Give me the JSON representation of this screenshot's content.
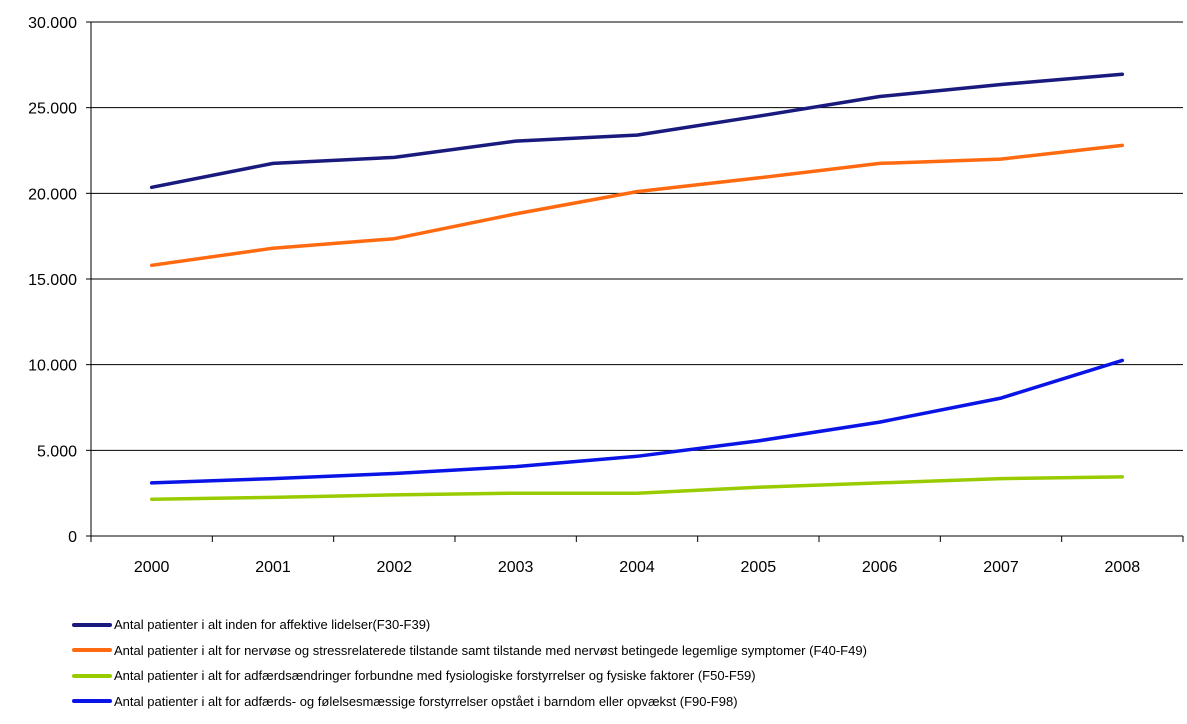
{
  "chart_data": {
    "type": "line",
    "categories": [
      "2000",
      "2001",
      "2002",
      "2003",
      "2004",
      "2005",
      "2006",
      "2007",
      "2008"
    ],
    "y_ticks": [
      "0",
      "5.000",
      "10.000",
      "15.000",
      "20.000",
      "25.000",
      "30.000"
    ],
    "ylim": [
      0,
      30000
    ],
    "grid": true,
    "legend_position": "bottom",
    "series": [
      {
        "name": "Antal patienter i alt inden for affektive lidelser(F30-F39)",
        "color": "#1a1a7e",
        "values": [
          20350,
          21750,
          22100,
          23050,
          23400,
          24500,
          25650,
          26350,
          26950
        ]
      },
      {
        "name": "Antal patienter i alt for nervøse og stressrelaterede tilstande samt tilstande med nervøst betingede legemlige symptomer (F40-F49)",
        "color": "#ff6a10",
        "values": [
          15800,
          16800,
          17350,
          18800,
          20100,
          20900,
          21750,
          22000,
          22800
        ]
      },
      {
        "name": "Antal patienter i alt for adfærdsændringer forbundne med fysiologiske forstyrrelser og fysiske faktorer (F50-F59)",
        "color": "#99cc00",
        "values": [
          2150,
          2250,
          2400,
          2500,
          2500,
          2850,
          3100,
          3350,
          3450
        ]
      },
      {
        "name": "Antal patienter i alt for adfærds- og følelsesmæssige forstyrrelser opstået i barndom eller opvækst (F90-F98)",
        "color": "#0a14e6",
        "values": [
          3100,
          3350,
          3650,
          4050,
          4650,
          5550,
          6650,
          8050,
          10250
        ]
      }
    ]
  }
}
